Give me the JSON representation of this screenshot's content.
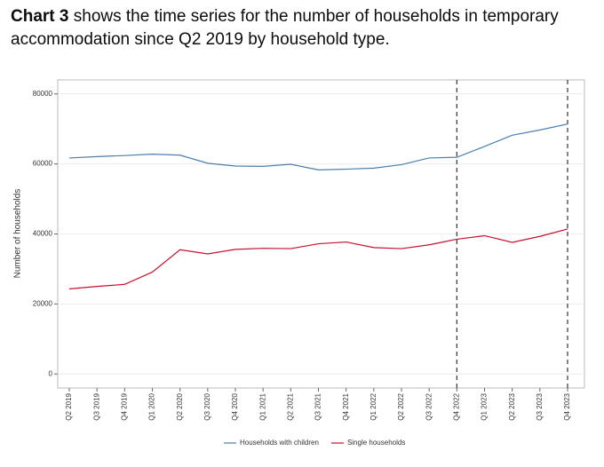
{
  "chart_data": {
    "type": "line",
    "title_lead": "Chart 3",
    "title": "shows the time series for the number of households in temporary accommodation since Q2 2019 by household type.",
    "y_label": "Number of households",
    "categories": [
      "Q2 2019",
      "Q3 2019",
      "Q4 2019",
      "Q1 2020",
      "Q2 2020",
      "Q3 2020",
      "Q4 2020",
      "Q1 2021",
      "Q2 2021",
      "Q3 2021",
      "Q4 2021",
      "Q1 2022",
      "Q2 2022",
      "Q3 2022",
      "Q4 2022",
      "Q1 2023",
      "Q2 2023",
      "Q3 2023",
      "Q4 2023"
    ],
    "series": [
      {
        "name": "Households with children",
        "color": "#4a7fb0",
        "values": [
          61700,
          62100,
          62400,
          62800,
          62500,
          60200,
          59400,
          59300,
          59900,
          58300,
          58500,
          58800,
          59800,
          61700,
          61900,
          65000,
          68200,
          69700,
          71400
        ]
      },
      {
        "name": "Single households",
        "color": "#c8102e",
        "values": [
          24300,
          25000,
          25600,
          29100,
          35500,
          34300,
          35600,
          35900,
          35800,
          37200,
          37700,
          36100,
          35800,
          36900,
          38500,
          39500,
          37600,
          39300,
          41400
        ]
      }
    ],
    "reference_lines": [
      14,
      18
    ],
    "ylim": [
      -4000,
      84000
    ],
    "yticks": [
      0,
      20000,
      40000,
      60000,
      80000
    ],
    "grid": true,
    "legend": "bottom"
  }
}
